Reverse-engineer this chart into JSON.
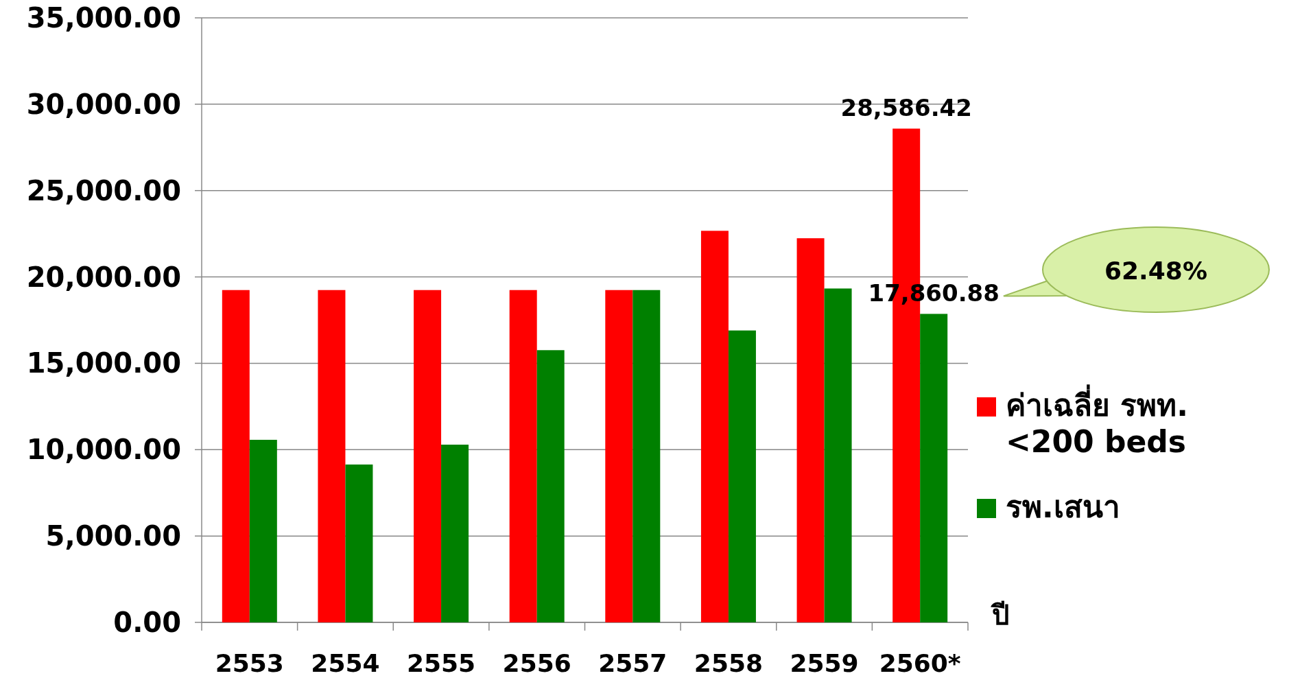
{
  "chart_data": {
    "type": "bar",
    "categories": [
      "2553",
      "2554",
      "2555",
      "2556",
      "2557",
      "2558",
      "2559",
      "2560*"
    ],
    "series": [
      {
        "name": "ค่าเฉลี่ย รพท. <200 beds",
        "color": "#ff0000",
        "values": [
          19240,
          19240,
          19240,
          19240,
          19240,
          22670,
          22240,
          28586.42
        ],
        "value_labels": [
          null,
          null,
          null,
          null,
          null,
          null,
          null,
          "28,586.42"
        ]
      },
      {
        "name": "รพ.เสนา",
        "color": "#008000",
        "values": [
          10570,
          9140,
          10290,
          15760,
          19240,
          16900,
          19330,
          17860.88
        ],
        "value_labels": [
          null,
          null,
          null,
          null,
          null,
          null,
          null,
          "17,860.88"
        ]
      }
    ],
    "xlabel": "ปี",
    "ylim": [
      0,
      35000
    ],
    "yticks": [
      {
        "value": 0,
        "label": "0.00"
      },
      {
        "value": 5000,
        "label": "5,000.00"
      },
      {
        "value": 10000,
        "label": "10,000.00"
      },
      {
        "value": 15000,
        "label": "15,000.00"
      },
      {
        "value": 20000,
        "label": "20,000.00"
      },
      {
        "value": 25000,
        "label": "25,000.00"
      },
      {
        "value": 30000,
        "label": "30,000.00"
      },
      {
        "value": 35000,
        "label": "35,000.00"
      }
    ],
    "grid": "y",
    "legend": "right",
    "annotations": [
      "62.48%"
    ]
  }
}
